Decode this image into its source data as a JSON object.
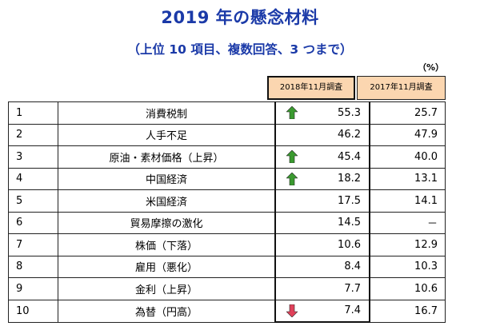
{
  "title": "2019 年の懸念材料",
  "subtitle": "（上位 10 項目、複数回答、3 つまで）",
  "unit": "（%）",
  "headers": {
    "col_2018": "2018年11月調査",
    "col_2017": "2017年11月調査"
  },
  "colors": {
    "title": "#1b3aa8",
    "header_bg": "#fbd6b0",
    "arrow_up": "#3a9a2f",
    "arrow_down": "#e0415a"
  },
  "rows": [
    {
      "rank": "1",
      "label": "消費税制",
      "arrow": "up",
      "v2018": "55.3",
      "v2017": "25.7"
    },
    {
      "rank": "2",
      "label": "人手不足",
      "arrow": "",
      "v2018": "46.2",
      "v2017": "47.9"
    },
    {
      "rank": "3",
      "label": "原油・素材価格（上昇）",
      "arrow": "up",
      "v2018": "45.4",
      "v2017": "40.0"
    },
    {
      "rank": "4",
      "label": "中国経済",
      "arrow": "up",
      "v2018": "18.2",
      "v2017": "13.1"
    },
    {
      "rank": "5",
      "label": "米国経済",
      "arrow": "",
      "v2018": "17.5",
      "v2017": "14.1"
    },
    {
      "rank": "6",
      "label": "貿易摩擦の激化",
      "arrow": "",
      "v2018": "14.5",
      "v2017": "－"
    },
    {
      "rank": "7",
      "label": "株価（下落）",
      "arrow": "",
      "v2018": "10.6",
      "v2017": "12.9"
    },
    {
      "rank": "8",
      "label": "雇用（悪化）",
      "arrow": "",
      "v2018": "8.4",
      "v2017": "10.3"
    },
    {
      "rank": "9",
      "label": "金利（上昇）",
      "arrow": "",
      "v2018": "7.7",
      "v2017": "10.6"
    },
    {
      "rank": "10",
      "label": "為替（円高）",
      "arrow": "down",
      "v2018": "7.4",
      "v2017": "16.7"
    }
  ]
}
